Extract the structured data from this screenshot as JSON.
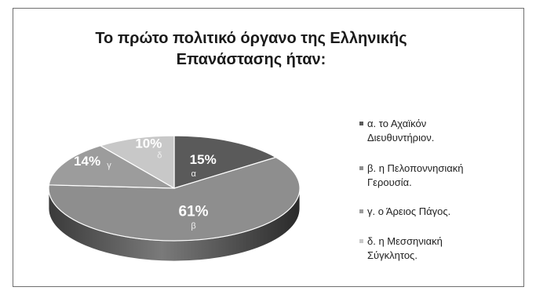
{
  "chart_data": {
    "type": "pie",
    "title_line1": "Το πρώτο πολιτικό όργανο της Ελληνικής",
    "title_line2": "Επανάστασης ήταν:",
    "slices": [
      {
        "key": "α",
        "label": "α. το Αχαϊκόν Διευθυντήριον.",
        "legend_line1": "α. το Αχαϊκόν",
        "legend_line2": "Διευθυντήριον.",
        "value": 15,
        "value_text": "15%",
        "color": "#5a5a5a",
        "side_color": "#2b2b2b"
      },
      {
        "key": "β",
        "label": "β. η Πελοποννησιακή Γερουσία.",
        "legend_line1": "β. η Πελοποννησιακή",
        "legend_line2": "Γερουσία.",
        "value": 61,
        "value_text": "61%",
        "color": "#8e8e8e",
        "side_color": "#4a4a4a"
      },
      {
        "key": "γ",
        "label": "γ. ο Άρειος Πάγος.",
        "legend_line1": "γ. ο Άρειος Πάγος.",
        "legend_line2": "",
        "value": 14,
        "value_text": "14%",
        "color": "#9c9c9c",
        "side_color": "#606060"
      },
      {
        "key": "δ",
        "label": "δ. η Μεσσηνιακή Σύγκλητος.",
        "legend_line1": "δ. η Μεσσηνιακή",
        "legend_line2": "Σύγκλητος.",
        "value": 10,
        "value_text": "10%",
        "color": "#c8c8c8",
        "side_color": "#8a8a8a"
      }
    ],
    "legend_position": "right"
  }
}
